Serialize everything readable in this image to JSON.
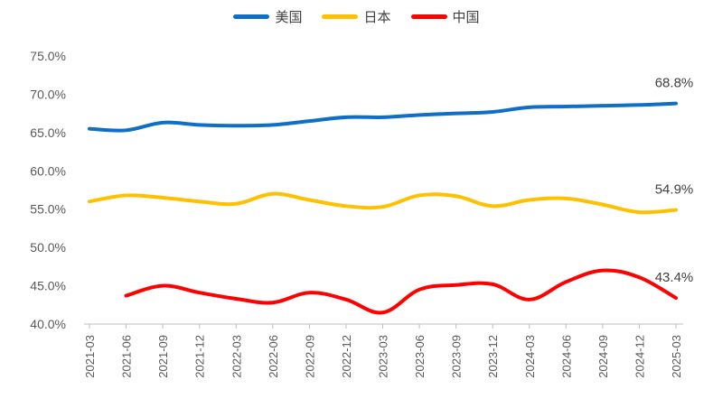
{
  "chart_data": {
    "type": "line",
    "title": "",
    "xlabel": "",
    "ylabel": "",
    "ylim": [
      40,
      75
    ],
    "y_ticks": [
      "75.0%",
      "70.0%",
      "65.0%",
      "60.0%",
      "55.0%",
      "50.0%",
      "45.0%",
      "40.0%"
    ],
    "y_tick_values": [
      75,
      70,
      65,
      60,
      55,
      50,
      45,
      40
    ],
    "grid": false,
    "legend_position": "top",
    "categories": [
      "2021-03",
      "2021-06",
      "2021-09",
      "2021-12",
      "2022-03",
      "2022-06",
      "2022-09",
      "2022-12",
      "2023-03",
      "2023-06",
      "2023-09",
      "2023-12",
      "2024-03",
      "2024-06",
      "2024-09",
      "2024-12",
      "2025-03"
    ],
    "series": [
      {
        "name": "美国",
        "color": "#0f6fc6",
        "values": [
          65.5,
          65.3,
          66.3,
          66.0,
          65.9,
          66.0,
          66.5,
          67.0,
          67.0,
          67.3,
          67.5,
          67.7,
          68.3,
          68.4,
          68.5,
          68.6,
          68.8
        ],
        "end_label": "68.8%"
      },
      {
        "name": "日本",
        "color": "#ffc000",
        "values": [
          56.0,
          56.8,
          56.5,
          56.0,
          55.7,
          57.0,
          56.2,
          55.4,
          55.3,
          56.8,
          56.7,
          55.4,
          56.2,
          56.4,
          55.6,
          54.6,
          54.9
        ],
        "end_label": "54.9%"
      },
      {
        "name": "中国",
        "color": "#ff0000",
        "values": [
          null,
          43.7,
          45.0,
          44.1,
          43.3,
          42.8,
          44.1,
          43.2,
          41.5,
          44.5,
          45.1,
          45.2,
          43.2,
          45.5,
          47.0,
          46.1,
          43.4
        ],
        "end_label": "43.4%"
      }
    ]
  }
}
